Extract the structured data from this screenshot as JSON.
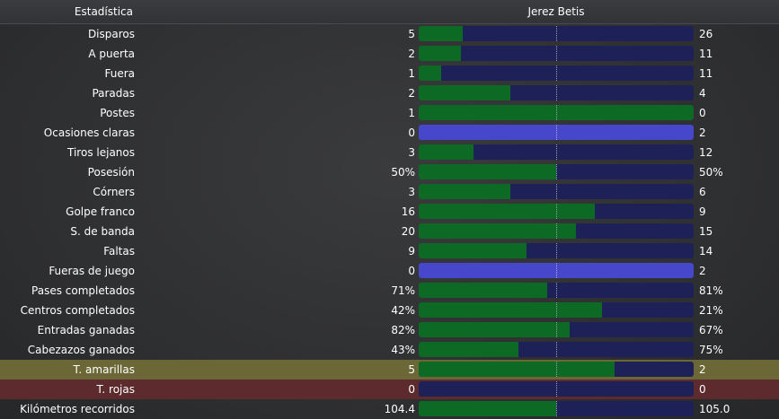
{
  "header": {
    "title": "Estadística",
    "match": "Jerez Betis"
  },
  "colors": {
    "home_bar": "#0c6a24",
    "away_bar": "#1e2158",
    "zero_bar": "#4747cc",
    "yellow_row": "#6b6736",
    "red_row": "#5d2a2e"
  },
  "stats": [
    {
      "label": "Disparos",
      "home": "5",
      "away": "26",
      "home_share": 0.161
    },
    {
      "label": "A puerta",
      "home": "2",
      "away": "11",
      "home_share": 0.154
    },
    {
      "label": "Fuera",
      "home": "1",
      "away": "11",
      "home_share": 0.083
    },
    {
      "label": "Paradas",
      "home": "2",
      "away": "4",
      "home_share": 0.333
    },
    {
      "label": "Postes",
      "home": "1",
      "away": "0",
      "home_share": 1.0
    },
    {
      "label": "Ocasiones claras",
      "home": "0",
      "away": "2",
      "home_share": 0.0,
      "empty": true
    },
    {
      "label": "Tiros lejanos",
      "home": "3",
      "away": "12",
      "home_share": 0.2
    },
    {
      "label": "Posesión",
      "home": "50%",
      "away": "50%",
      "home_share": 0.5
    },
    {
      "label": "Córners",
      "home": "3",
      "away": "6",
      "home_share": 0.333
    },
    {
      "label": "Golpe franco",
      "home": "16",
      "away": "9",
      "home_share": 0.64
    },
    {
      "label": "S. de banda",
      "home": "20",
      "away": "15",
      "home_share": 0.571
    },
    {
      "label": "Faltas",
      "home": "9",
      "away": "14",
      "home_share": 0.391
    },
    {
      "label": "Fueras de juego",
      "home": "0",
      "away": "2",
      "home_share": 0.0,
      "empty": true
    },
    {
      "label": "Pases completados",
      "home": "71%",
      "away": "81%",
      "home_share": 0.467
    },
    {
      "label": "Centros completados",
      "home": "42%",
      "away": "21%",
      "home_share": 0.667
    },
    {
      "label": "Entradas ganadas",
      "home": "82%",
      "away": "67%",
      "home_share": 0.55
    },
    {
      "label": "Cabezazos ganados",
      "home": "43%",
      "away": "75%",
      "home_share": 0.364
    },
    {
      "label": "T. amarillas",
      "home": "5",
      "away": "2",
      "home_share": 0.714,
      "highlight": "yellow"
    },
    {
      "label": "T. rojas",
      "home": "0",
      "away": "0",
      "home_share": 0.0,
      "highlight": "red"
    },
    {
      "label": "Kilómetros recorridos",
      "home": "104.4",
      "away": "105.0",
      "home_share": 0.499
    }
  ]
}
